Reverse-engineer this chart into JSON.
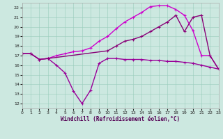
{
  "xlabel": "Windchill (Refroidissement éolien,°C)",
  "bg_color": "#cce8e0",
  "grid_color": "#99ccbb",
  "xlim": [
    0,
    23
  ],
  "ylim": [
    11.5,
    22.5
  ],
  "yticks": [
    12,
    13,
    14,
    15,
    16,
    17,
    18,
    19,
    20,
    21,
    22
  ],
  "xticks": [
    0,
    1,
    2,
    3,
    4,
    5,
    6,
    7,
    8,
    9,
    10,
    11,
    12,
    13,
    14,
    15,
    16,
    17,
    18,
    19,
    20,
    21,
    22,
    23
  ],
  "lines": [
    {
      "x": [
        0,
        1,
        2,
        3,
        4,
        5,
        6,
        7,
        8,
        9,
        10,
        11,
        12,
        13,
        14,
        15,
        16,
        17,
        18,
        19,
        20,
        21,
        22,
        23
      ],
      "y": [
        17.2,
        17.2,
        16.6,
        16.7,
        16.0,
        15.2,
        13.3,
        12.0,
        13.4,
        16.2,
        16.7,
        16.7,
        16.6,
        16.6,
        16.6,
        16.5,
        16.5,
        16.4,
        16.4,
        16.3,
        16.2,
        16.0,
        15.8,
        15.6
      ],
      "color": "#990099",
      "lw": 1.0
    },
    {
      "x": [
        0,
        1,
        2,
        3,
        4,
        5,
        6,
        7,
        8,
        9,
        10,
        11,
        12,
        13,
        14,
        15,
        16,
        17,
        18,
        19,
        20,
        21,
        22,
        23
      ],
      "y": [
        17.2,
        17.2,
        16.6,
        16.7,
        17.0,
        17.2,
        17.4,
        17.5,
        17.8,
        18.5,
        19.0,
        19.8,
        20.5,
        21.0,
        21.5,
        22.1,
        22.2,
        22.2,
        21.8,
        21.2,
        19.6,
        17.0,
        17.0,
        15.6
      ],
      "color": "#cc00cc",
      "lw": 1.0
    },
    {
      "x": [
        0,
        1,
        2,
        3,
        10,
        11,
        12,
        13,
        14,
        15,
        16,
        17,
        18,
        19,
        20,
        21,
        22,
        23
      ],
      "y": [
        17.2,
        17.2,
        16.6,
        16.7,
        17.5,
        18.0,
        18.5,
        18.7,
        19.0,
        19.5,
        20.0,
        20.5,
        21.2,
        19.5,
        21.0,
        21.2,
        17.0,
        15.6
      ],
      "color": "#880077",
      "lw": 1.0
    }
  ]
}
